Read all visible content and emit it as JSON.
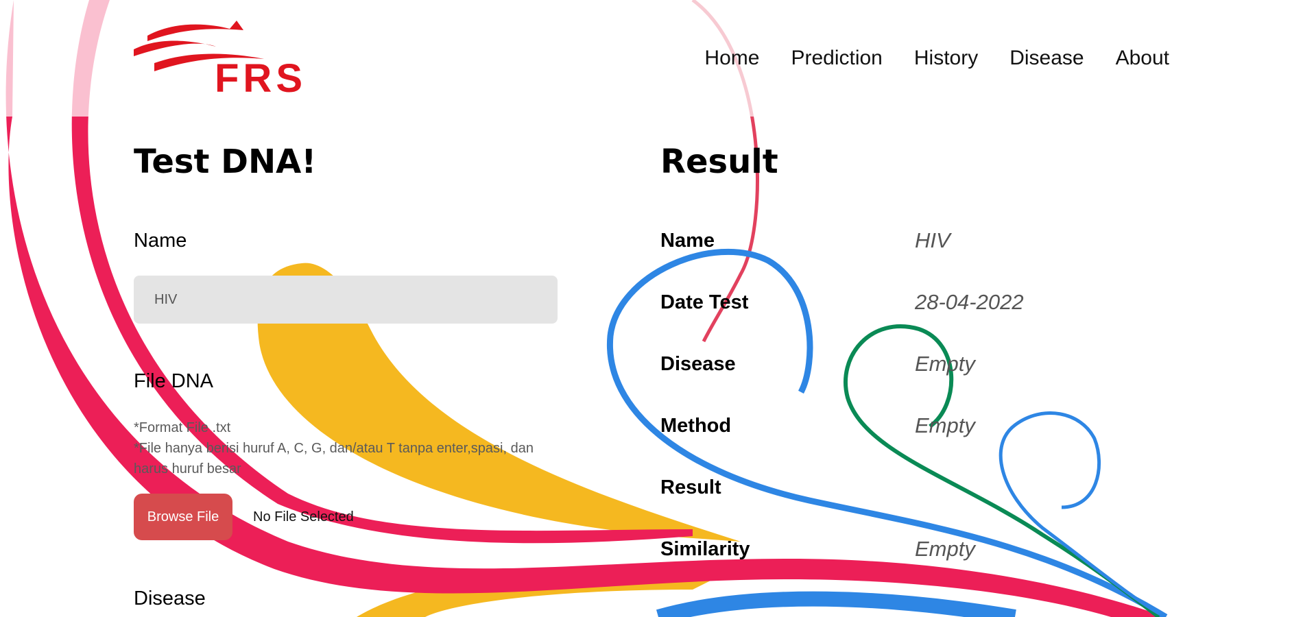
{
  "brand": {
    "logo_text": "FRS",
    "logo_color": "#e0151f"
  },
  "nav": {
    "items": [
      "Home",
      "Prediction",
      "History",
      "Disease",
      "About"
    ]
  },
  "form": {
    "title": "Test DNA!",
    "name_label": "Name",
    "name_value": "HIV",
    "file_label": "File DNA",
    "note_line1": "*Format File .txt",
    "note_line2": "*File hanya berisi huruf A, C, G, dan/atau T tanpa enter,spasi, dan harus huruf besar",
    "browse_label": "Browse File",
    "file_status": "No File Selected",
    "disease_label": "Disease"
  },
  "result": {
    "title": "Result",
    "rows": [
      {
        "label": "Name",
        "value": "HIV"
      },
      {
        "label": "Date Test",
        "value": "28-04-2022"
      },
      {
        "label": "Disease",
        "value": "Empty"
      },
      {
        "label": "Method",
        "value": "Empty"
      },
      {
        "label": "Result",
        "value": ""
      },
      {
        "label": "Similarity",
        "value": "Empty"
      }
    ]
  },
  "colors": {
    "red_ribbon": "#ec1f57",
    "yellow_ribbon": "#f5b820",
    "blue_ribbon": "#2e86e4",
    "green_ribbon": "#0a8a55",
    "button": "#d64b4d"
  }
}
